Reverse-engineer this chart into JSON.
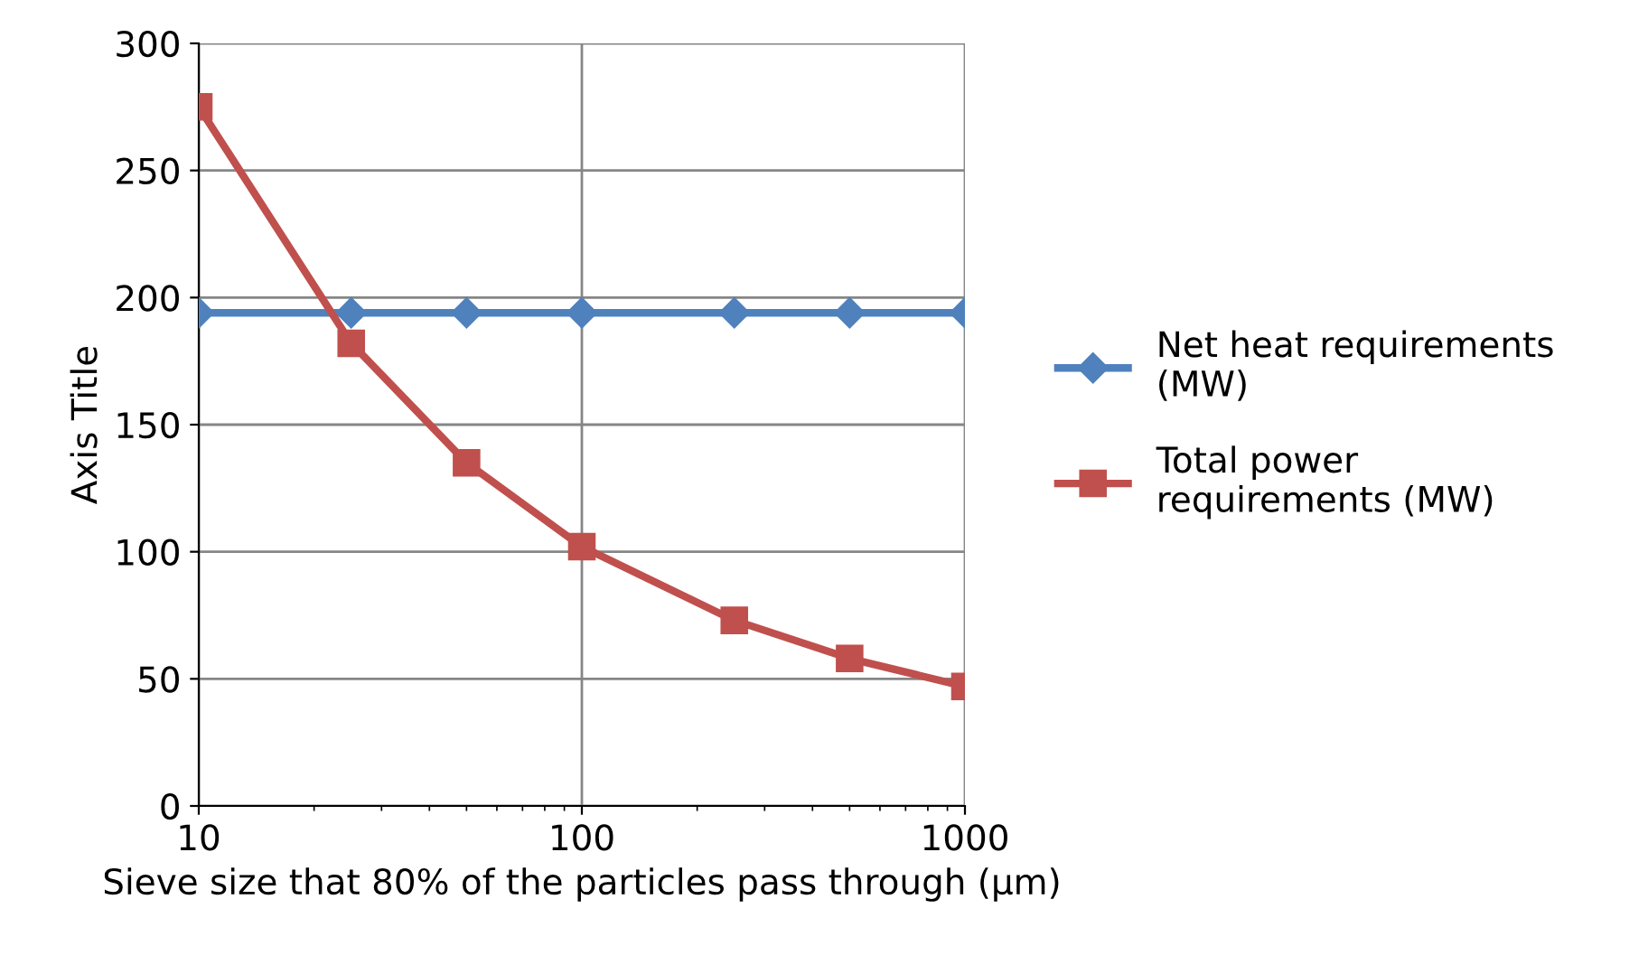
{
  "chart_data": {
    "type": "line",
    "ylabel": "Axis Title",
    "xlabel": "Sieve size that 80% of the particles pass through (µm)",
    "x": [
      10,
      25,
      50,
      100,
      250,
      500,
      1000
    ],
    "series": [
      {
        "name": "Net heat requirements (MW)",
        "color": "#4f81bd",
        "marker": "diamond",
        "values": [
          194,
          194,
          194,
          194,
          194,
          194,
          194
        ]
      },
      {
        "name": "Total power requirements (MW)",
        "color": "#c0504d",
        "marker": "square",
        "values": [
          275,
          182,
          135,
          102,
          73,
          58,
          47
        ]
      }
    ],
    "log": "x",
    "xlim": [
      10,
      1000
    ],
    "xticks": [
      10,
      100,
      1000
    ],
    "ylim": [
      0,
      300
    ],
    "yticks": [
      0,
      50,
      100,
      150,
      200,
      250,
      300
    ],
    "grid": true,
    "legend": "right",
    "line_style": "solid"
  }
}
